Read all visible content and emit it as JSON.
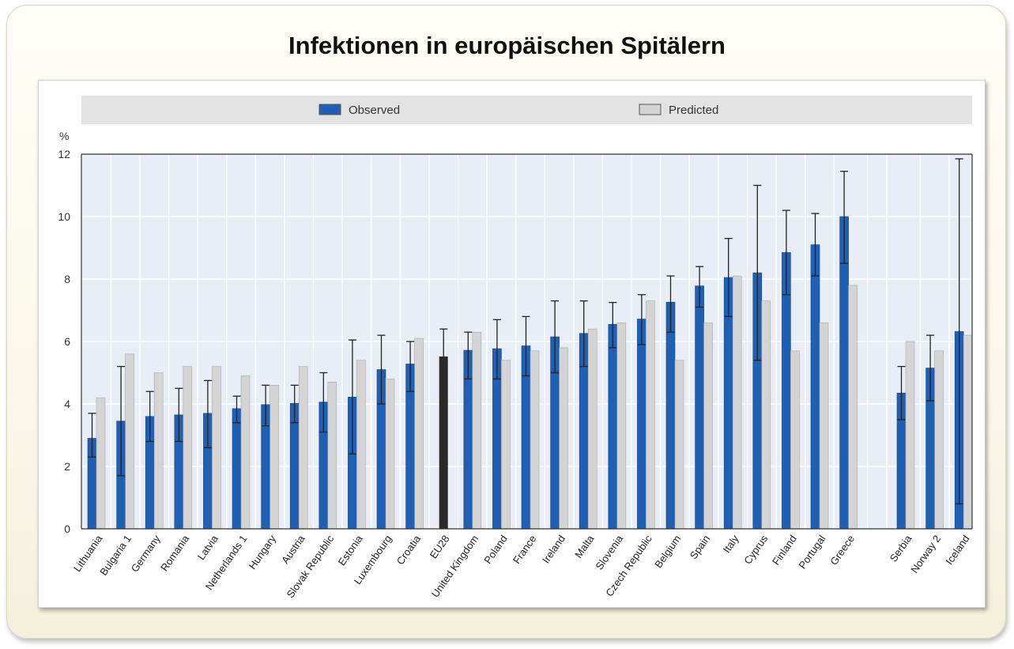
{
  "title": "Infektionen in europäischen Spitälern",
  "colors": {
    "observed": "#1f5fb4",
    "predicted": "#d4d4d4",
    "eu": "#2a2a2a",
    "plot_bg": "#e9eef6",
    "legend_bg": "#e3e3e3"
  },
  "chart_data": {
    "type": "bar",
    "ylabel": "%",
    "ylim": [
      0,
      12
    ],
    "yticks": [
      0,
      2,
      4,
      6,
      8,
      10,
      12
    ],
    "grid": true,
    "legend_position": "top",
    "series": [
      {
        "name": "Observed"
      },
      {
        "name": "Predicted"
      }
    ],
    "categories": [
      "Lithuania",
      "Bulgaria 1",
      "Germany",
      "Romania",
      "Latvia",
      "Netherlands 1",
      "Hungary",
      "Austria",
      "Slovak Republic",
      "Estonia",
      "Luxembourg",
      "Croatia",
      "EU28",
      "United Kingdom",
      "Poland",
      "France",
      "Ireland",
      "Malta",
      "Slovenia",
      "Czech Republic",
      "Belgium",
      "Spain",
      "Italy",
      "Cyprus",
      "Finland",
      "Portugal",
      "Greece",
      "Serbia",
      "Norway 2",
      "Iceland"
    ],
    "observed": [
      2.9,
      3.45,
      3.6,
      3.65,
      3.7,
      3.85,
      3.98,
      4.02,
      4.06,
      4.22,
      5.1,
      5.28,
      5.52,
      5.72,
      5.77,
      5.86,
      6.15,
      6.26,
      6.55,
      6.72,
      7.26,
      7.78,
      8.05,
      8.2,
      8.85,
      9.1,
      10.0,
      4.35,
      5.15,
      6.32
    ],
    "predicted": [
      4.2,
      5.6,
      5.0,
      5.2,
      5.2,
      4.9,
      4.6,
      5.2,
      4.7,
      5.4,
      4.8,
      6.1,
      null,
      6.3,
      5.4,
      5.7,
      5.8,
      6.4,
      6.6,
      7.3,
      5.4,
      6.6,
      8.1,
      7.3,
      5.7,
      6.6,
      7.8,
      6.0,
      5.7,
      6.2
    ],
    "ci_low": [
      2.3,
      1.7,
      2.8,
      2.8,
      2.6,
      3.4,
      3.3,
      3.4,
      3.1,
      2.4,
      4.0,
      4.4,
      null,
      4.8,
      4.8,
      4.9,
      5.0,
      5.2,
      5.8,
      5.9,
      6.3,
      7.1,
      6.8,
      5.4,
      7.5,
      8.1,
      8.5,
      3.5,
      4.1,
      0.8
    ],
    "ci_high": [
      3.7,
      5.2,
      4.4,
      4.5,
      4.75,
      4.25,
      4.6,
      4.6,
      5.0,
      6.05,
      6.2,
      6.0,
      6.4,
      6.3,
      6.7,
      6.8,
      7.3,
      7.3,
      7.25,
      7.5,
      8.1,
      8.4,
      9.3,
      11.0,
      10.2,
      10.1,
      11.45,
      5.2,
      6.2,
      11.85
    ]
  }
}
